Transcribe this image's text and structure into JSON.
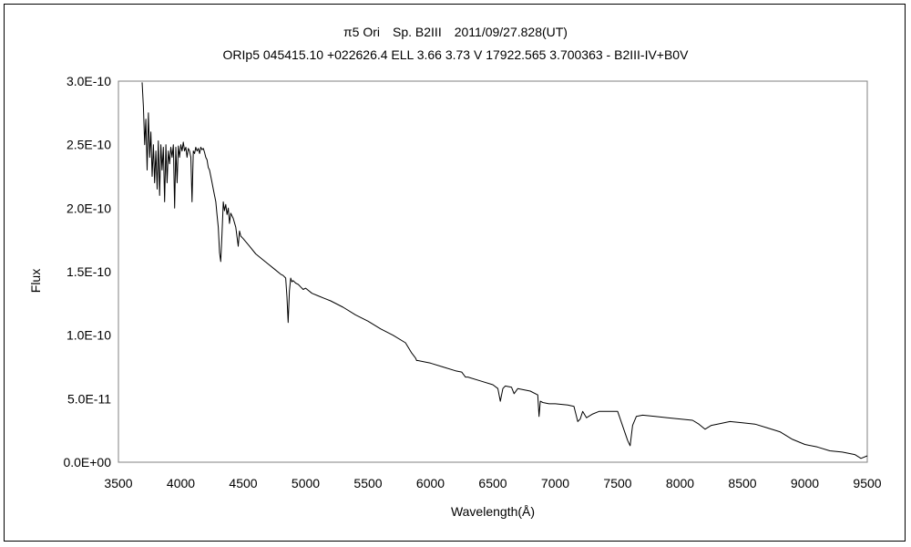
{
  "chart_data": {
    "type": "line",
    "title": "π5 Ori　Sp. B2III　2011/09/27.828(UT)",
    "subtitle": "ORIp5 045415.10 +022626.4 ELL 3.66 3.73 V 17922.565 3.700363 - B2III-IV+B0V",
    "xlabel": "Wavelength(Å)",
    "ylabel": "Flux",
    "xlim": [
      3500,
      9500
    ],
    "ylim": [
      0,
      3e-10
    ],
    "x_ticks": [
      3500,
      4000,
      4500,
      5000,
      5500,
      6000,
      6500,
      7000,
      7500,
      8000,
      8500,
      9000,
      9500
    ],
    "x_tick_labels": [
      "3500",
      "4000",
      "4500",
      "5000",
      "5500",
      "6000",
      "6500",
      "7000",
      "7500",
      "8000",
      "8500",
      "9000",
      "9500"
    ],
    "y_ticks": [
      0,
      5e-11,
      1e-10,
      1.5e-10,
      2e-10,
      2.5e-10,
      3e-10
    ],
    "y_tick_labels": [
      "0.0E+00",
      "5.0E-11",
      "1.0E-10",
      "1.5E-10",
      "2.0E-10",
      "2.5E-10",
      "3.0E-10"
    ],
    "grid": false,
    "legend": "none",
    "line_color": "#000000",
    "series": [
      {
        "x": [
          3690,
          3700,
          3710,
          3720,
          3730,
          3740,
          3750,
          3760,
          3770,
          3780,
          3790,
          3800,
          3810,
          3820,
          3830,
          3840,
          3850,
          3860,
          3870,
          3880,
          3890,
          3900,
          3910,
          3920,
          3930,
          3940,
          3950,
          3960,
          3970,
          3980,
          3990,
          4000,
          4010,
          4020,
          4030,
          4040,
          4050,
          4060,
          4070,
          4080,
          4090,
          4100,
          4110,
          4120,
          4130,
          4140,
          4150,
          4160,
          4170,
          4180,
          4190,
          4200,
          4210,
          4220,
          4230,
          4240,
          4250,
          4260,
          4270,
          4280,
          4290,
          4300,
          4310,
          4320,
          4330,
          4340,
          4350,
          4360,
          4370,
          4380,
          4390,
          4400,
          4420,
          4440,
          4460,
          4470,
          4480,
          4500,
          4550,
          4600,
          4650,
          4700,
          4750,
          4800,
          4820,
          4840,
          4850,
          4860,
          4870,
          4880,
          4890,
          4900,
          4920,
          4940,
          4960,
          4980,
          5000,
          5050,
          5100,
          5150,
          5200,
          5300,
          5400,
          5500,
          5600,
          5700,
          5800,
          5850,
          5880,
          5890,
          5900,
          5950,
          6000,
          6100,
          6200,
          6250,
          6280,
          6300,
          6400,
          6500,
          6540,
          6560,
          6580,
          6600,
          6650,
          6670,
          6700,
          6800,
          6860,
          6870,
          6880,
          6900,
          6950,
          7000,
          7100,
          7150,
          7180,
          7200,
          7220,
          7250,
          7300,
          7350,
          7400,
          7500,
          7580,
          7600,
          7620,
          7650,
          7700,
          7800,
          7900,
          8000,
          8100,
          8150,
          8200,
          8250,
          8300,
          8400,
          8500,
          8600,
          8700,
          8800,
          8900,
          9000,
          9100,
          9200,
          9300,
          9400,
          9450,
          9500
        ],
        "y": [
          2.99e-10,
          2.8e-10,
          2.5e-10,
          2.7e-10,
          2.3e-10,
          2.75e-10,
          2.4e-10,
          2.6e-10,
          2.25e-10,
          2.5e-10,
          2.2e-10,
          2.45e-10,
          2.15e-10,
          2.53e-10,
          2.1e-10,
          2.5e-10,
          2.3e-10,
          2.48e-10,
          2.05e-10,
          2.5e-10,
          2.2e-10,
          2.45e-10,
          2.35e-10,
          2.48e-10,
          2.4e-10,
          2.5e-10,
          2e-10,
          2.48e-10,
          2.2e-10,
          2.49e-10,
          2.4e-10,
          2.5e-10,
          2.45e-10,
          2.52e-10,
          2.45e-10,
          2.48e-10,
          2.4e-10,
          2.47e-10,
          2.45e-10,
          2.4e-10,
          2.05e-10,
          2.45e-10,
          2.43e-10,
          2.48e-10,
          2.45e-10,
          2.47e-10,
          2.43e-10,
          2.48e-10,
          2.46e-10,
          2.47e-10,
          2.44e-10,
          2.4e-10,
          2.38e-10,
          2.32e-10,
          2.3e-10,
          2.25e-10,
          2.2e-10,
          2.15e-10,
          2.1e-10,
          2.05e-10,
          1.95e-10,
          1.85e-10,
          1.65e-10,
          1.58e-10,
          1.8e-10,
          2.05e-10,
          1.98e-10,
          2.03e-10,
          1.95e-10,
          2e-10,
          1.88e-10,
          1.96e-10,
          1.92e-10,
          1.85e-10,
          1.7e-10,
          1.82e-10,
          1.78e-10,
          1.76e-10,
          1.7e-10,
          1.64e-10,
          1.6e-10,
          1.56e-10,
          1.52e-10,
          1.48e-10,
          1.47e-10,
          1.45e-10,
          1.3e-10,
          1.1e-10,
          1.35e-10,
          1.45e-10,
          1.42e-10,
          1.43e-10,
          1.41e-10,
          1.4e-10,
          1.38e-10,
          1.36e-10,
          1.37e-10,
          1.33e-10,
          1.31e-10,
          1.29e-10,
          1.27e-10,
          1.22e-10,
          1.16e-10,
          1.11e-10,
          1.05e-10,
          1e-10,
          9.4e-11,
          8.6e-11,
          8.2e-11,
          8e-11,
          8e-11,
          7.9e-11,
          7.8e-11,
          7.5e-11,
          7.2e-11,
          7.1e-11,
          6.7e-11,
          6.7e-11,
          6.4e-11,
          6.1e-11,
          5.8e-11,
          4.8e-11,
          5.8e-11,
          6e-11,
          5.9e-11,
          5.4e-11,
          5.8e-11,
          5.6e-11,
          5.3e-11,
          3.6e-11,
          4.8e-11,
          4.7e-11,
          4.6e-11,
          4.6e-11,
          4.5e-11,
          4.4e-11,
          3.2e-11,
          3.4e-11,
          4e-11,
          3.5e-11,
          3.8e-11,
          4e-11,
          4e-11,
          4e-11,
          1.7e-11,
          1.3e-11,
          2.9e-11,
          3.6e-11,
          3.7e-11,
          3.6e-11,
          3.5e-11,
          3.4e-11,
          3.3e-11,
          3e-11,
          2.6e-11,
          2.9e-11,
          3e-11,
          3.2e-11,
          3.1e-11,
          3e-11,
          2.7e-11,
          2.4e-11,
          1.8e-11,
          1.4e-11,
          1.2e-11,
          9e-12,
          8e-12,
          6e-12,
          3e-12,
          5e-12
        ]
      }
    ]
  }
}
